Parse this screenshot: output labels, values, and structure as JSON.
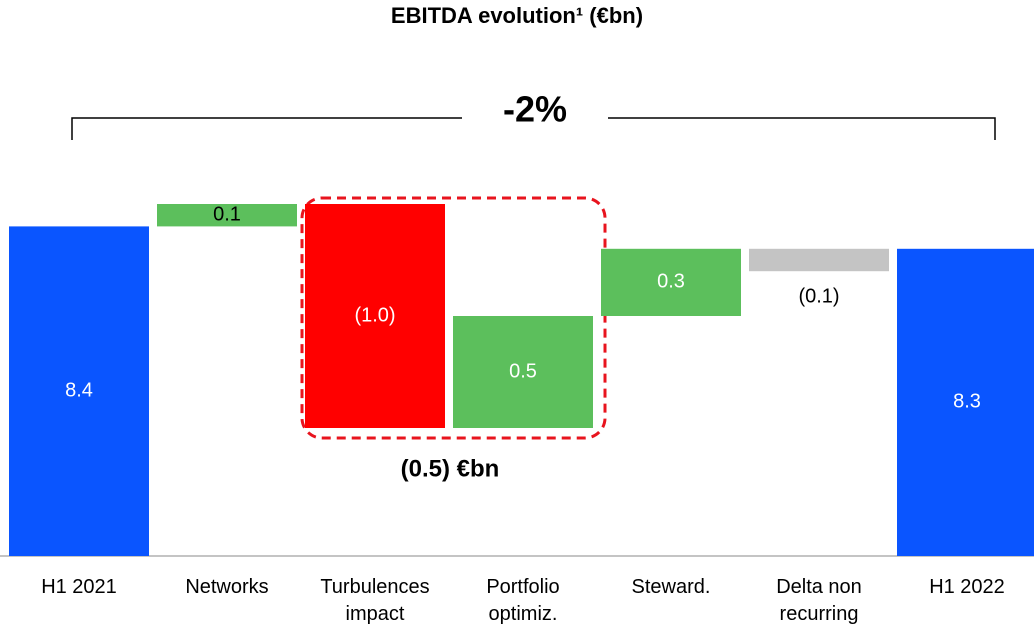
{
  "chart_data": {
    "type": "waterfall",
    "title": "EBITDA evolution¹ (€bn)",
    "categories": [
      "H1 2021",
      "Networks",
      "Turbulences impact",
      "Portfolio optimiz.",
      "Steward.",
      "Delta non recurring",
      "H1 2022"
    ],
    "values": [
      8.4,
      0.1,
      -1.0,
      0.5,
      0.3,
      -0.1,
      8.3
    ],
    "value_labels": [
      "8.4",
      "0.1",
      "(1.0)",
      "0.5",
      "0.3",
      "(0.1)",
      "8.3"
    ],
    "totals": [
      true,
      false,
      false,
      false,
      false,
      false,
      true
    ],
    "colors": [
      "#0a55ff",
      "#5cbf5c",
      "#ff0000",
      "#5cbf5c",
      "#5cbf5c",
      "#c4c4c4",
      "#0a55ff"
    ],
    "annotations": [
      "-2%",
      "(0.5) €bn"
    ]
  }
}
